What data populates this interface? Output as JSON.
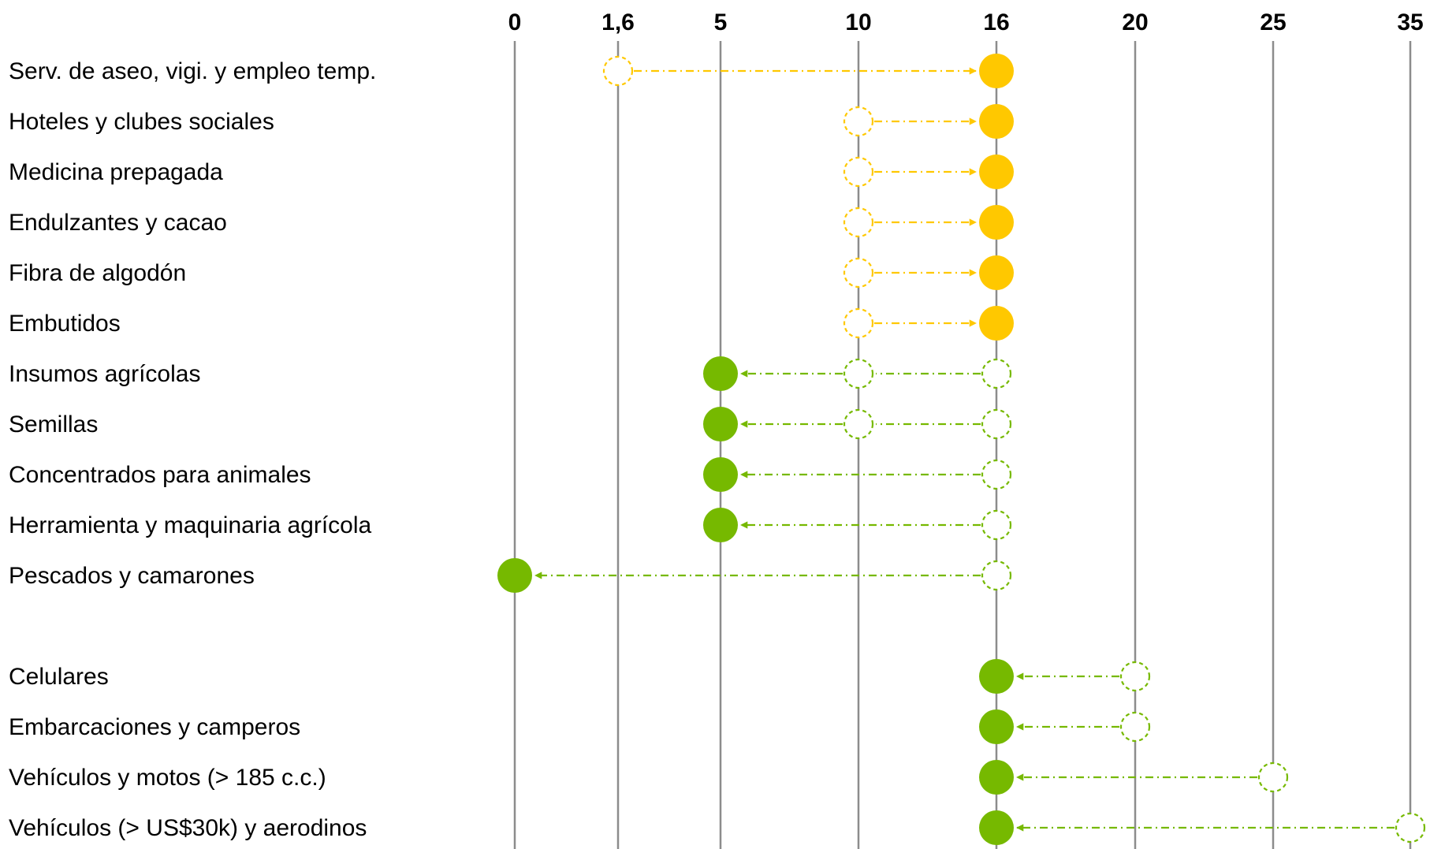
{
  "chart_data": {
    "type": "scatter",
    "x_ticks": [
      {
        "value": 0,
        "label": "0"
      },
      {
        "value": 1.6,
        "label": "1,6"
      },
      {
        "value": 5,
        "label": "5"
      },
      {
        "value": 10,
        "label": "10"
      },
      {
        "value": 16,
        "label": "16"
      },
      {
        "value": 20,
        "label": "20"
      },
      {
        "value": 25,
        "label": "25"
      },
      {
        "value": 35,
        "label": "35"
      }
    ],
    "grid": "vertical lines at each tick",
    "categories": [
      {
        "label": "Serv. de aseo, vigi. y empleo temp.",
        "from": [
          1.6
        ],
        "to": 16,
        "color": "#FFC800"
      },
      {
        "label": "Hoteles y clubes sociales",
        "from": [
          10
        ],
        "to": 16,
        "color": "#FFC800"
      },
      {
        "label": "Medicina prepagada",
        "from": [
          10
        ],
        "to": 16,
        "color": "#FFC800"
      },
      {
        "label": "Endulzantes y cacao",
        "from": [
          10
        ],
        "to": 16,
        "color": "#FFC800"
      },
      {
        "label": "Fibra de algodón",
        "from": [
          10
        ],
        "to": 16,
        "color": "#FFC800"
      },
      {
        "label": "Embutidos",
        "from": [
          10
        ],
        "to": 16,
        "color": "#FFC800"
      },
      {
        "label": "Insumos agrícolas",
        "from": [
          16,
          10
        ],
        "to": 5,
        "color": "#76B900"
      },
      {
        "label": "Semillas",
        "from": [
          16,
          10
        ],
        "to": 5,
        "color": "#76B900"
      },
      {
        "label": "Concentrados para animales",
        "from": [
          16
        ],
        "to": 5,
        "color": "#76B900"
      },
      {
        "label": "Herramienta y maquinaria agrícola",
        "from": [
          16
        ],
        "to": 5,
        "color": "#76B900"
      },
      {
        "label": "Pescados y camarones",
        "from": [
          16
        ],
        "to": 0,
        "color": "#76B900"
      },
      {
        "label": "",
        "from": [],
        "to": null,
        "color": ""
      },
      {
        "label": "Celulares",
        "from": [
          20
        ],
        "to": 16,
        "color": "#76B900"
      },
      {
        "label": "Embarcaciones y camperos",
        "from": [
          20
        ],
        "to": 16,
        "color": "#76B900"
      },
      {
        "label": "Vehículos y motos (> 185 c.c.)",
        "from": [
          25
        ],
        "to": 16,
        "color": "#76B900"
      },
      {
        "label": "Vehículos (> US$30k) y aerodinos",
        "from": [
          35
        ],
        "to": 16,
        "color": "#76B900"
      }
    ]
  }
}
